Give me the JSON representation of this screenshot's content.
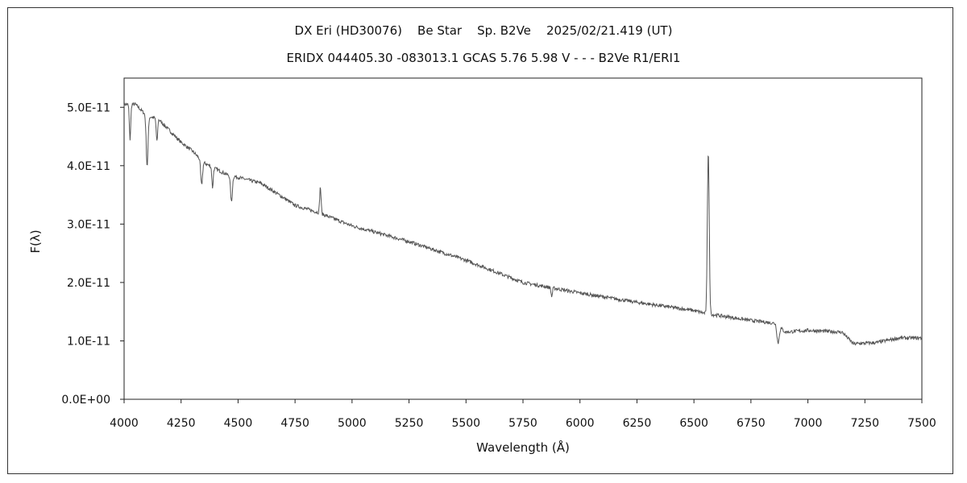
{
  "chart_data": {
    "type": "line",
    "title": "DX Eri (HD30076)    Be Star    Sp. B2Ve    2025/02/21.419 (UT)",
    "subtitle": "ERIDX 044405.30 -083013.1 GCAS 5.76 5.98 V - - - B2Ve R1/ERI1",
    "xlabel": "Wavelength (Å)",
    "ylabel": "F(λ)",
    "xlim": [
      4000,
      7500
    ],
    "ylim": [
      0,
      5.5e-11
    ],
    "x_ticks": [
      "4000",
      "4250",
      "4500",
      "4750",
      "5000",
      "5250",
      "5500",
      "5750",
      "6000",
      "6250",
      "6500",
      "6750",
      "7000",
      "7250",
      "7500"
    ],
    "y_ticks": [
      {
        "value": 0.0,
        "label": "0.0E+00"
      },
      {
        "value": 1e-11,
        "label": "1.0E-11"
      },
      {
        "value": 2e-11,
        "label": "2.0E-11"
      },
      {
        "value": 3e-11,
        "label": "3.0E-11"
      },
      {
        "value": 4e-11,
        "label": "4.0E-11"
      },
      {
        "value": 5e-11,
        "label": "5.0E-11"
      }
    ],
    "grid": false,
    "series": [
      {
        "color": "#555555",
        "continuum": [
          [
            4000,
            5.05e-11
          ],
          [
            4050,
            5.05e-11
          ],
          [
            4100,
            4.85e-11
          ],
          [
            4150,
            4.8e-11
          ],
          [
            4200,
            4.6e-11
          ],
          [
            4250,
            4.4e-11
          ],
          [
            4300,
            4.25e-11
          ],
          [
            4350,
            4.05e-11
          ],
          [
            4400,
            3.95e-11
          ],
          [
            4450,
            3.85e-11
          ],
          [
            4500,
            3.8e-11
          ],
          [
            4600,
            3.7e-11
          ],
          [
            4700,
            3.45e-11
          ],
          [
            4750,
            3.32e-11
          ],
          [
            4850,
            3.2e-11
          ],
          [
            5000,
            2.97e-11
          ],
          [
            5250,
            2.7e-11
          ],
          [
            5500,
            2.38e-11
          ],
          [
            5750,
            2e-11
          ],
          [
            6000,
            1.82e-11
          ],
          [
            6250,
            1.66e-11
          ],
          [
            6500,
            1.52e-11
          ],
          [
            6550,
            1.47e-11
          ],
          [
            6750,
            1.35e-11
          ],
          [
            6860,
            1.3e-11
          ],
          [
            6900,
            1.15e-11
          ],
          [
            7000,
            1.18e-11
          ],
          [
            7150,
            1.15e-11
          ],
          [
            7200,
            9.5e-12
          ],
          [
            7300,
            9.7e-12
          ],
          [
            7400,
            1.05e-11
          ],
          [
            7500,
            1.05e-11
          ]
        ],
        "features": [
          {
            "center": 4026,
            "depth": -6e-12,
            "width": 3
          },
          {
            "center": 4101,
            "depth": -8.5e-12,
            "width": 4
          },
          {
            "center": 4144,
            "depth": -4e-12,
            "width": 3
          },
          {
            "center": 4340,
            "depth": -4.2e-12,
            "width": 4
          },
          {
            "center": 4388,
            "depth": -3.5e-12,
            "width": 3
          },
          {
            "center": 4471,
            "depth": -4.5e-12,
            "width": 4
          },
          {
            "center": 4861,
            "depth": 4.5e-12,
            "width": 3
          },
          {
            "center": 5876,
            "depth": -1.5e-12,
            "width": 3
          },
          {
            "center": 6563,
            "depth": 2.8e-11,
            "width": 4
          },
          {
            "center": 6869,
            "depth": -3e-12,
            "width": 5
          }
        ]
      }
    ]
  }
}
